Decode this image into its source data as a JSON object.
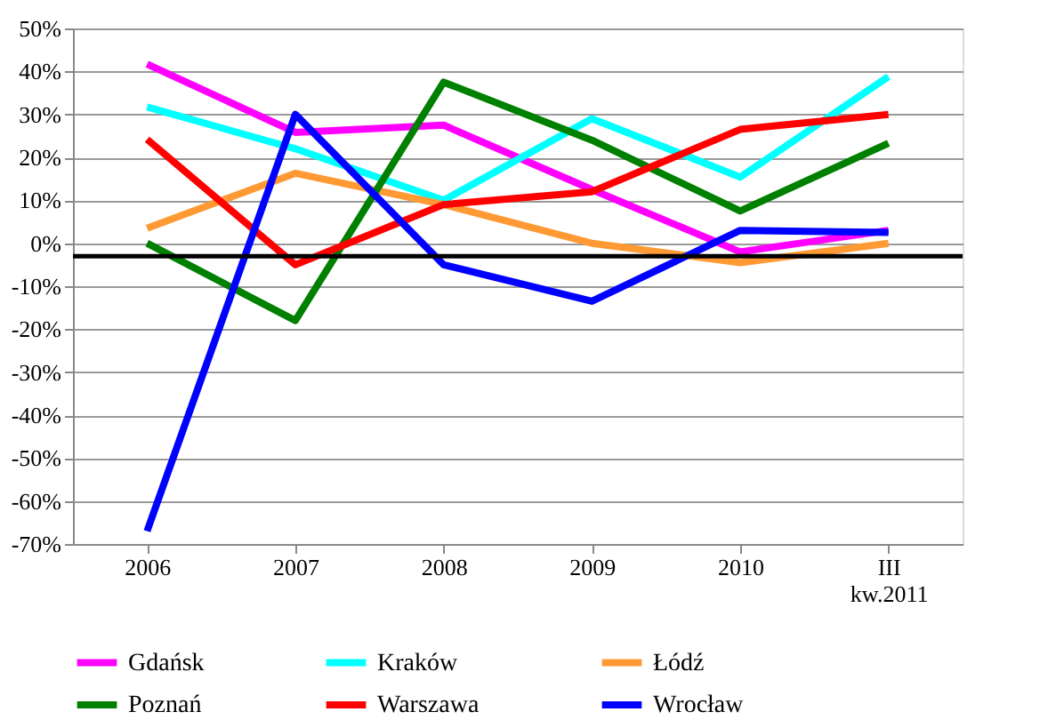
{
  "chart_data": {
    "type": "line",
    "categories": [
      "2006",
      "2007",
      "2008",
      "2009",
      "2010",
      "III kw.2011"
    ],
    "series": [
      {
        "name": "Gdańsk",
        "color": "#ff00ff",
        "values": [
          41.7,
          25.8,
          27.5,
          12.5,
          -2,
          3
        ]
      },
      {
        "name": "Kraków",
        "color": "#00ffff",
        "values": [
          31.7,
          22,
          10,
          29,
          15.4,
          38.8
        ]
      },
      {
        "name": "Łódź",
        "color": "#ff9933",
        "values": [
          3.5,
          16.3,
          9,
          0,
          -4.5,
          0
        ]
      },
      {
        "name": "Poznań",
        "color": "#008000",
        "values": [
          0,
          -18,
          37.5,
          24,
          7.5,
          23.3
        ]
      },
      {
        "name": "Warszawa",
        "color": "#ff0000",
        "values": [
          24.2,
          -5,
          9,
          12,
          26.5,
          30
        ]
      },
      {
        "name": "Wrocław",
        "color": "#0000ff",
        "values": [
          -67,
          30,
          -5,
          -13.5,
          3,
          2.5
        ]
      }
    ],
    "ylim": [
      -70,
      50
    ],
    "yticks": [
      {
        "value": -70,
        "label": "-70%"
      },
      {
        "value": -60,
        "label": "-60%"
      },
      {
        "value": -50,
        "label": "-50%"
      },
      {
        "value": -40,
        "label": "-40%"
      },
      {
        "value": -30,
        "label": "-30%"
      },
      {
        "value": -20,
        "label": "-20%"
      },
      {
        "value": -10,
        "label": "-10%"
      },
      {
        "value": 0,
        "label": "0%"
      },
      {
        "value": 10,
        "label": "10%"
      },
      {
        "value": 20,
        "label": "20%"
      },
      {
        "value": 30,
        "label": "30%"
      },
      {
        "value": 40,
        "label": "40%"
      },
      {
        "value": 50,
        "label": "50%"
      }
    ],
    "ref_lines": [
      {
        "axis": "y",
        "value": -3,
        "color": "#000000"
      }
    ],
    "grid": "y",
    "legend": "bottom",
    "marker": "none",
    "line_style": "solid"
  }
}
